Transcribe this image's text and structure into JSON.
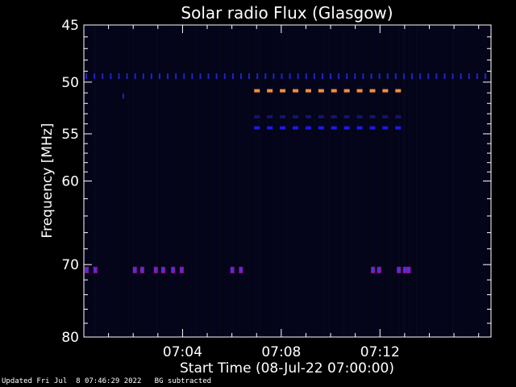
{
  "chart_data": {
    "type": "heatmap",
    "title": "Solar radio Flux (Glasgow)",
    "xlabel": "Start Time (08-Jul-22 07:00:00)",
    "ylabel": "Frequency [MHz]",
    "x_unit": "minutes after 07:00:00",
    "xlim": [
      0,
      16.5
    ],
    "ylim": [
      45,
      80
    ],
    "y_inverted": true,
    "y_scale": "log",
    "x_ticks": [
      {
        "value": 4,
        "label": "07:04"
      },
      {
        "value": 8,
        "label": "07:08"
      },
      {
        "value": 12,
        "label": "07:12"
      }
    ],
    "y_ticks": [
      {
        "value": 45,
        "label": "45"
      },
      {
        "value": 50,
        "label": "50"
      },
      {
        "value": 55,
        "label": "55"
      },
      {
        "value": 60,
        "label": "60"
      },
      {
        "value": 70,
        "label": "70"
      },
      {
        "value": 80,
        "label": "80"
      }
    ],
    "background_color": "#04041a",
    "features": [
      {
        "kind": "interference-dashes",
        "freq": 49.5,
        "x_range": [
          0.1,
          16.5
        ],
        "spacing": 0.33,
        "color": "#2222cc"
      },
      {
        "kind": "interference-dashes",
        "freq": 50.8,
        "x_range": [
          7.0,
          13.2
        ],
        "spacing": 0.52,
        "color": "#ff8c3a"
      },
      {
        "kind": "interference-dashes",
        "freq": 53.3,
        "x_range": [
          7.0,
          13.2
        ],
        "spacing": 0.52,
        "color": "#14146e"
      },
      {
        "kind": "interference-dashes",
        "freq": 54.4,
        "x_range": [
          7.0,
          13.2
        ],
        "spacing": 0.52,
        "color": "#1a1aee"
      },
      {
        "kind": "interference-spots",
        "freq": 70.7,
        "x": [
          0.1,
          0.45,
          2.05,
          2.35,
          2.9,
          3.2,
          3.6,
          3.95,
          6.0,
          6.35,
          11.7,
          11.95,
          12.75,
          13.0,
          13.15
        ],
        "color": "#8a16a8"
      }
    ]
  },
  "footer": {
    "text": "Updated Fri Jul  8 07:46:29 2022   BG subtracted"
  }
}
